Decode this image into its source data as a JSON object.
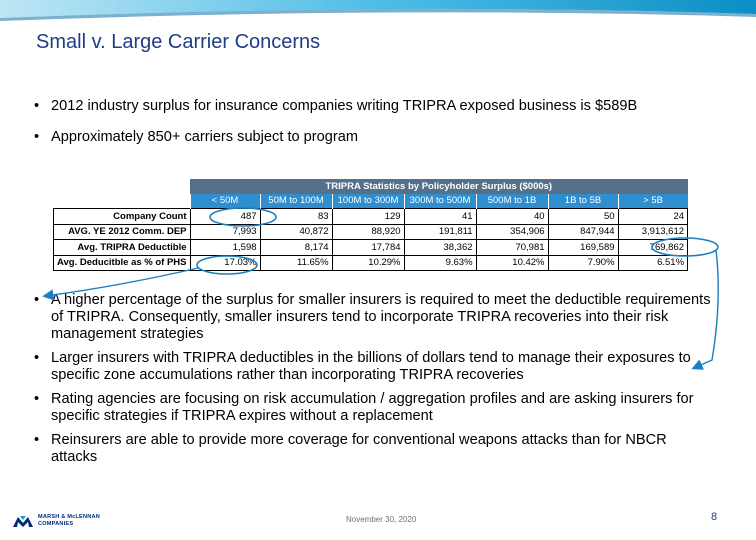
{
  "title": "Small v. Large Carrier Concerns",
  "bullets_top": [
    "2012 industry surplus for insurance companies writing TRIPRA exposed business is $589B",
    "Approximately 850+ carriers subject to program"
  ],
  "table": {
    "caption": "TRIPRA Statistics by Policyholder Surplus ($000s)",
    "columns": [
      "< 50M",
      "50M to 100M",
      "100M to 300M",
      "300M to 500M",
      "500M to 1B",
      "1B to 5B",
      "> 5B"
    ],
    "rows": [
      {
        "label": "Company Count",
        "values": [
          "487",
          "83",
          "129",
          "41",
          "40",
          "50",
          "24"
        ]
      },
      {
        "label": "AVG. YE 2012 Comm. DEP",
        "values": [
          "7,993",
          "40,872",
          "88,920",
          "191,811",
          "354,906",
          "847,944",
          "3,913,612"
        ]
      },
      {
        "label": "Avg. TRIPRA Deductible",
        "values": [
          "1,598",
          "8,174",
          "17,784",
          "38,362",
          "70,981",
          "169,589",
          "769,862"
        ]
      },
      {
        "label": "Avg. Deducitble as % of PHS",
        "values": [
          "17.03%",
          "11.65%",
          "10.29%",
          "9.63%",
          "10.42%",
          "7.90%",
          "6.51%"
        ]
      }
    ]
  },
  "bullets_bottom": [
    "A higher percentage of the surplus for smaller insurers is required to meet the deductible requirements of TRIPRA.  Consequently, smaller insurers tend to incorporate TRIPRA recoveries into their risk management strategies",
    "Larger insurers with TRIPRA deductibles in the billions of dollars tend to manage their exposures to specific zone accumulations rather than incorporating TRIPRA recoveries",
    "Rating agencies are focusing on risk accumulation / aggregation profiles and are asking insurers for specific strategies if TRIPRA expires without a replacement",
    "Reinsurers are able to provide more coverage for conventional weapons attacks than for NBCR attacks"
  ],
  "footer": {
    "date": "November 30, 2020",
    "page_number": "8",
    "logo_line1": "MARSH & McLENNAN",
    "logo_line2": "COMPANIES"
  },
  "colors": {
    "title": "#1f3c88",
    "table_caption": "#54708a",
    "table_header": "#2e8ed0",
    "annotation": "#1a7fc0"
  }
}
